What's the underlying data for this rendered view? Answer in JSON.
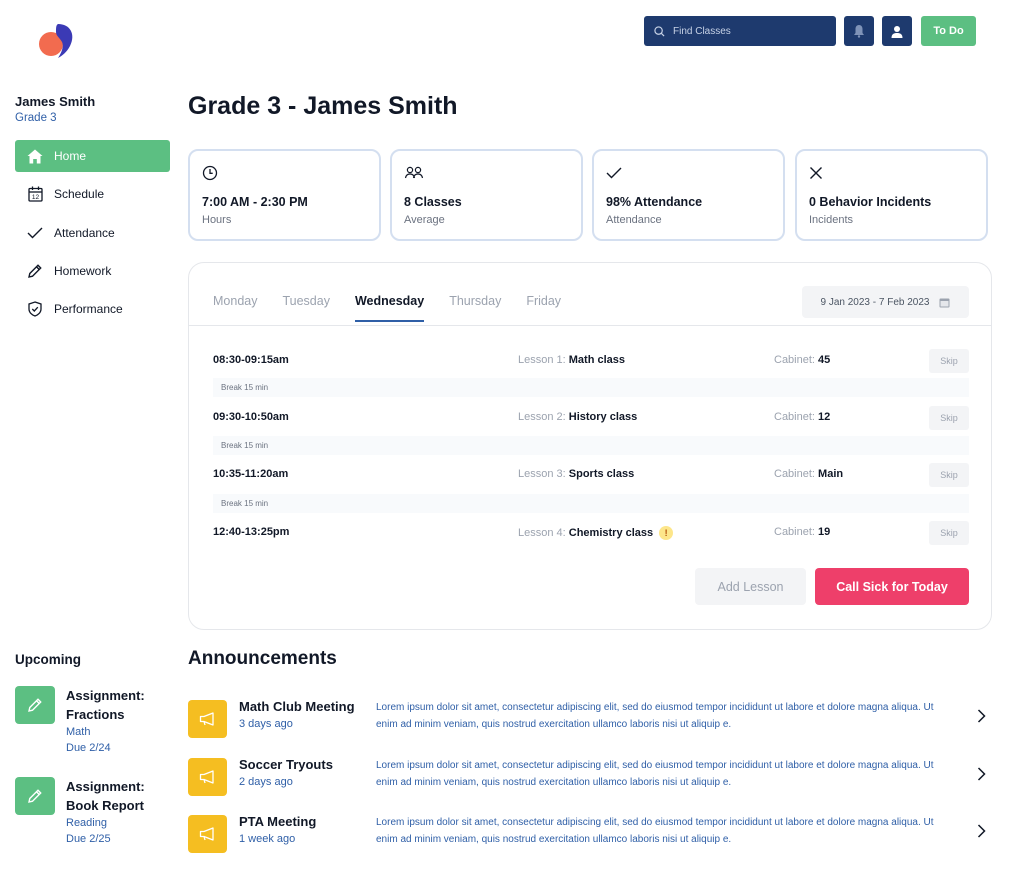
{
  "header": {
    "search_placeholder": "Find Classes",
    "todo_label": "To Do"
  },
  "student": {
    "name": "James Smith",
    "grade": "Grade 3"
  },
  "nav": [
    {
      "label": "Home",
      "icon": "home-icon"
    },
    {
      "label": "Schedule",
      "icon": "calendar-icon"
    },
    {
      "label": "Attendance",
      "icon": "check-icon"
    },
    {
      "label": "Homework",
      "icon": "pencil-icon"
    },
    {
      "label": "Performance",
      "icon": "shield-icon"
    }
  ],
  "page_title": "Grade 3 - James Smith",
  "stats": [
    {
      "value": "7:00 AM - 2:30 PM",
      "label": "Hours",
      "icon": "clock-icon"
    },
    {
      "value": "8 Classes",
      "label": "Average",
      "icon": "users-icon"
    },
    {
      "value": "98% Attendance",
      "label": "Attendance",
      "icon": "check-icon"
    },
    {
      "value": "0 Behavior Incidents",
      "label": "Incidents",
      "icon": "x-icon"
    }
  ],
  "schedule": {
    "days": [
      "Monday",
      "Tuesday",
      "Wednesday",
      "Thursday",
      "Friday"
    ],
    "active_day": "Wednesday",
    "date_range": "9 Jan 2023 - 7 Feb 2023",
    "lessons": [
      {
        "time": "08:30-09:15am",
        "lesson_prefix": "Lesson 1:",
        "lesson_name": "Math class",
        "cabinet_label": "Cabinet:",
        "cabinet": "45",
        "skip": "Skip"
      },
      {
        "time": "09:30-10:50am",
        "lesson_prefix": "Lesson 2:",
        "lesson_name": "History class",
        "cabinet_label": "Cabinet:",
        "cabinet": "12",
        "skip": "Skip"
      },
      {
        "time": "10:35-11:20am",
        "lesson_prefix": "Lesson 3:",
        "lesson_name": "Sports class",
        "cabinet_label": "Cabinet:",
        "cabinet": "Main",
        "skip": "Skip"
      },
      {
        "time": "12:40-13:25pm",
        "lesson_prefix": "Lesson 4:",
        "lesson_name": "Chemistry class",
        "cabinet_label": "Cabinet:",
        "cabinet": "19",
        "skip": "Skip",
        "warning": "!"
      }
    ],
    "break_label": "Break 15 min",
    "add_lesson_label": "Add Lesson",
    "call_sick_label": "Call Sick for Today"
  },
  "upcoming": {
    "title": "Upcoming",
    "items": [
      {
        "title": "Assignment: Fractions",
        "subject": "Math",
        "due": "Due 2/24"
      },
      {
        "title": "Assignment: Book Report",
        "subject": "Reading",
        "due": "Due 2/25"
      }
    ]
  },
  "announcements": {
    "title": "Announcements",
    "items": [
      {
        "name": "Math Club Meeting",
        "time": "3 days ago",
        "desc": "Lorem ipsum dolor sit amet, consectetur adipiscing elit, sed do eiusmod  tempor incididunt ut labore et dolore magna aliqua. Ut enim ad minim  veniam, quis nostrud exercitation ullamco laboris nisi ut aliquip e."
      },
      {
        "name": "Soccer Tryouts",
        "time": "2 days ago",
        "desc": "Lorem ipsum dolor sit amet, consectetur adipiscing elit, sed do eiusmod  tempor incididunt ut labore et dolore magna aliqua. Ut enim ad minim  veniam, quis nostrud exercitation ullamco laboris nisi ut aliquip e."
      },
      {
        "name": "PTA Meeting",
        "time": "1 week ago",
        "desc": "Lorem ipsum dolor sit amet, consectetur adipiscing elit, sed do eiusmod  tempor incididunt ut labore et dolore magna aliqua. Ut enim ad minim  veniam, quis nostrud exercitation ullamco laboris nisi ut aliquip e."
      }
    ]
  },
  "colors": {
    "navy": "#1e3a6e",
    "green": "#5cbf82",
    "pink": "#ee3f6a",
    "yellow": "#f5be21",
    "link_blue": "#2f5fa7"
  }
}
